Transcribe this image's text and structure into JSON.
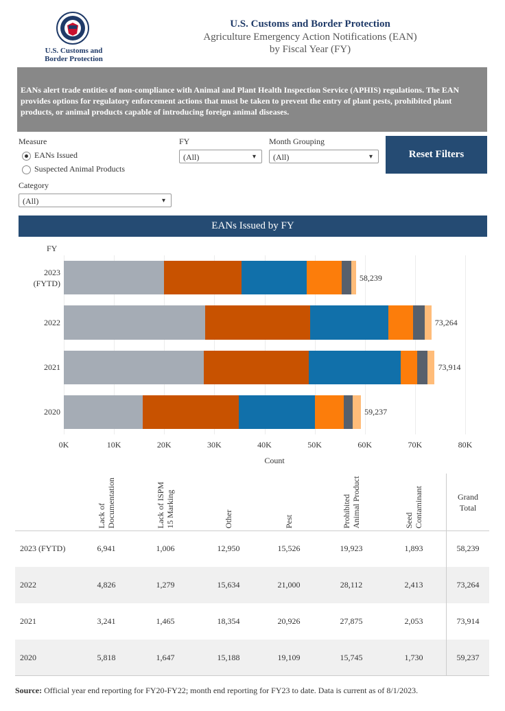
{
  "header": {
    "logo_text": "U.S. Customs and Border Protection",
    "title": "U.S. Customs and Border Protection",
    "subtitle": "Agriculture Emergency Action Notifications (EAN)",
    "subtitle2": "by Fiscal Year (FY)"
  },
  "description": "EANs alert trade entities of non-compliance with Animal and Plant Health Inspection Service (APHIS) regulations. The EAN provides options for regulatory enforcement actions that must be taken to prevent the entry of plant pests, prohibited plant products, or animal products capable of introducing foreign animal diseases.",
  "filters": {
    "measure": {
      "label": "Measure",
      "options": [
        "EANs Issued",
        "Suspected Animal Products"
      ]
    },
    "fy": {
      "label": "FY",
      "value": "(All)"
    },
    "month_grouping": {
      "label": "Month Grouping",
      "value": "(All)"
    },
    "category": {
      "label": "Category",
      "value": "(All)"
    },
    "reset": "Reset Filters"
  },
  "chart_data": {
    "type": "bar",
    "orientation": "horizontal",
    "stacked": true,
    "title": "EANs Issued by FY",
    "y_label": "FY",
    "x_label": "Count",
    "categories": [
      "2023 (FYTD)",
      "2022",
      "2021",
      "2020"
    ],
    "series": [
      {
        "name": "Prohibited Animal Product",
        "color": "#a5acb5",
        "values": [
          19923,
          28112,
          27875,
          15745
        ]
      },
      {
        "name": "Pest",
        "color": "#c85200",
        "values": [
          15526,
          21000,
          20926,
          19109
        ]
      },
      {
        "name": "Other",
        "color": "#1170aa",
        "values": [
          12950,
          15634,
          18354,
          15188
        ]
      },
      {
        "name": "Lack of Documentation",
        "color": "#fc7d0b",
        "values": [
          6941,
          4826,
          3241,
          5818
        ]
      },
      {
        "name": "Seed Contaminant",
        "color": "#57606c",
        "values": [
          1893,
          2413,
          2053,
          1730
        ]
      },
      {
        "name": "Lack of ISPM 15 Marking",
        "color": "#ffbc79",
        "values": [
          1006,
          1279,
          1465,
          1647
        ]
      }
    ],
    "totals": [
      58239,
      73264,
      73914,
      59237
    ],
    "total_labels": [
      "58,239",
      "73,264",
      "73,914",
      "59,237"
    ],
    "xlim": [
      0,
      80000
    ],
    "xticks": [
      {
        "value": 0,
        "label": "0K"
      },
      {
        "value": 10000,
        "label": "10K"
      },
      {
        "value": 20000,
        "label": "20K"
      },
      {
        "value": 30000,
        "label": "30K"
      },
      {
        "value": 40000,
        "label": "40K"
      },
      {
        "value": 50000,
        "label": "50K"
      },
      {
        "value": 60000,
        "label": "60K"
      },
      {
        "value": 70000,
        "label": "70K"
      },
      {
        "value": 80000,
        "label": "80K"
      }
    ],
    "grid": true
  },
  "table": {
    "columns": [
      "Lack of Documentation",
      "Lack of ISPM 15 Marking",
      "Other",
      "Pest",
      "Prohibited Animal Product",
      "Seed Contaminant",
      "Grand Total"
    ],
    "rows": [
      {
        "label": "2023 (FYTD)",
        "cells": [
          "6,941",
          "1,006",
          "12,950",
          "15,526",
          "19,923",
          "1,893",
          "58,239"
        ]
      },
      {
        "label": "2022",
        "cells": [
          "4,826",
          "1,279",
          "15,634",
          "21,000",
          "28,112",
          "2,413",
          "73,264"
        ]
      },
      {
        "label": "2021",
        "cells": [
          "3,241",
          "1,465",
          "18,354",
          "20,926",
          "27,875",
          "2,053",
          "73,914"
        ]
      },
      {
        "label": "2020",
        "cells": [
          "5,818",
          "1,647",
          "15,188",
          "19,109",
          "15,745",
          "1,730",
          "59,237"
        ]
      }
    ]
  },
  "source": {
    "label": "Source:",
    "text": "Official year end reporting for FY20-FY22; month end reporting for FY23 to date. Data is current as of 8/1/2023."
  }
}
